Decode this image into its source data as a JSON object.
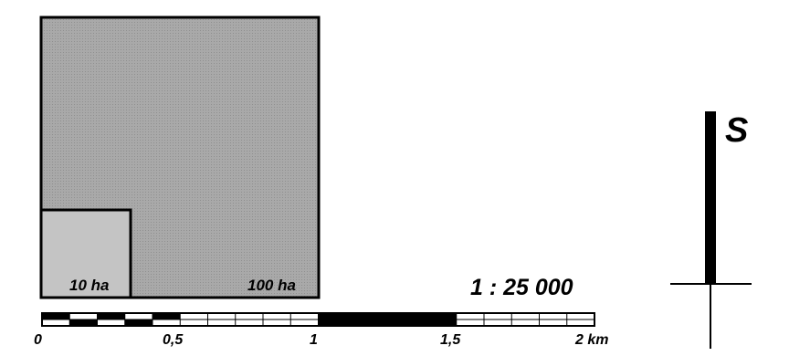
{
  "areas": {
    "large_label": "100 ha",
    "small_label": "10 ha"
  },
  "scale": {
    "ratio": "1 : 25 000",
    "tick_labels": [
      "0",
      "0,5",
      "1",
      "1,5",
      "2 km"
    ]
  },
  "orientation": {
    "label": "S"
  },
  "colors": {
    "large_area": "#a9a9a9",
    "small_area": "#c4c4c4",
    "ink": "#000000"
  }
}
